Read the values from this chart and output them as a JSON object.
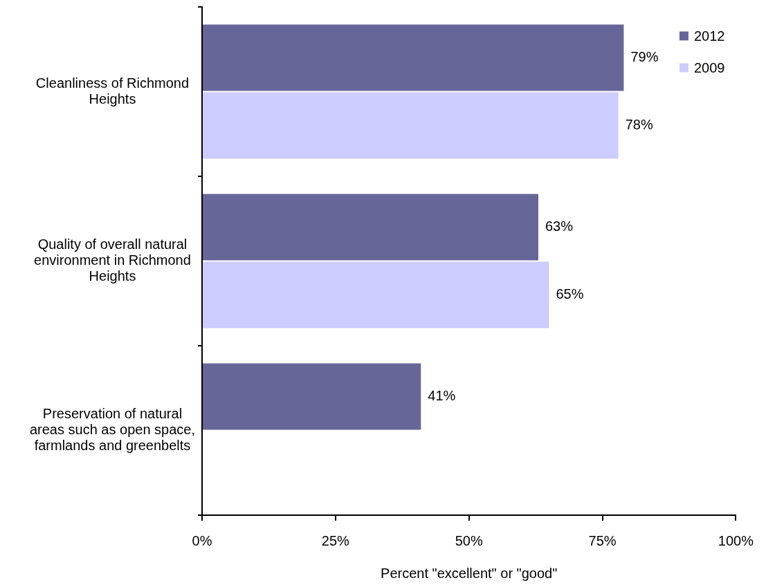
{
  "chart_data": {
    "type": "bar",
    "orientation": "horizontal",
    "categories": [
      "Cleanliness of Richmond Heights",
      "Quality of overall natural environment in Richmond Heights",
      "Preservation of natural areas such as open space, farmlands and greenbelts"
    ],
    "series": [
      {
        "name": "2012",
        "color": "#666699",
        "values": [
          79,
          63,
          41
        ],
        "value_labels": [
          "79%",
          "63%",
          "41%"
        ]
      },
      {
        "name": "2009",
        "color": "#ccccff",
        "values": [
          78,
          65,
          null
        ],
        "value_labels": [
          "78%",
          "65%",
          null
        ]
      }
    ],
    "xlabel": "Percent \"excellent\" or \"good\"",
    "xlim": [
      0,
      100
    ],
    "xticks": [
      {
        "value": 0,
        "label": "0%"
      },
      {
        "value": 25,
        "label": "25%"
      },
      {
        "value": 50,
        "label": "50%"
      },
      {
        "value": 75,
        "label": "75%"
      },
      {
        "value": 100,
        "label": "100%"
      }
    ],
    "grid": false,
    "legend": "top right"
  }
}
